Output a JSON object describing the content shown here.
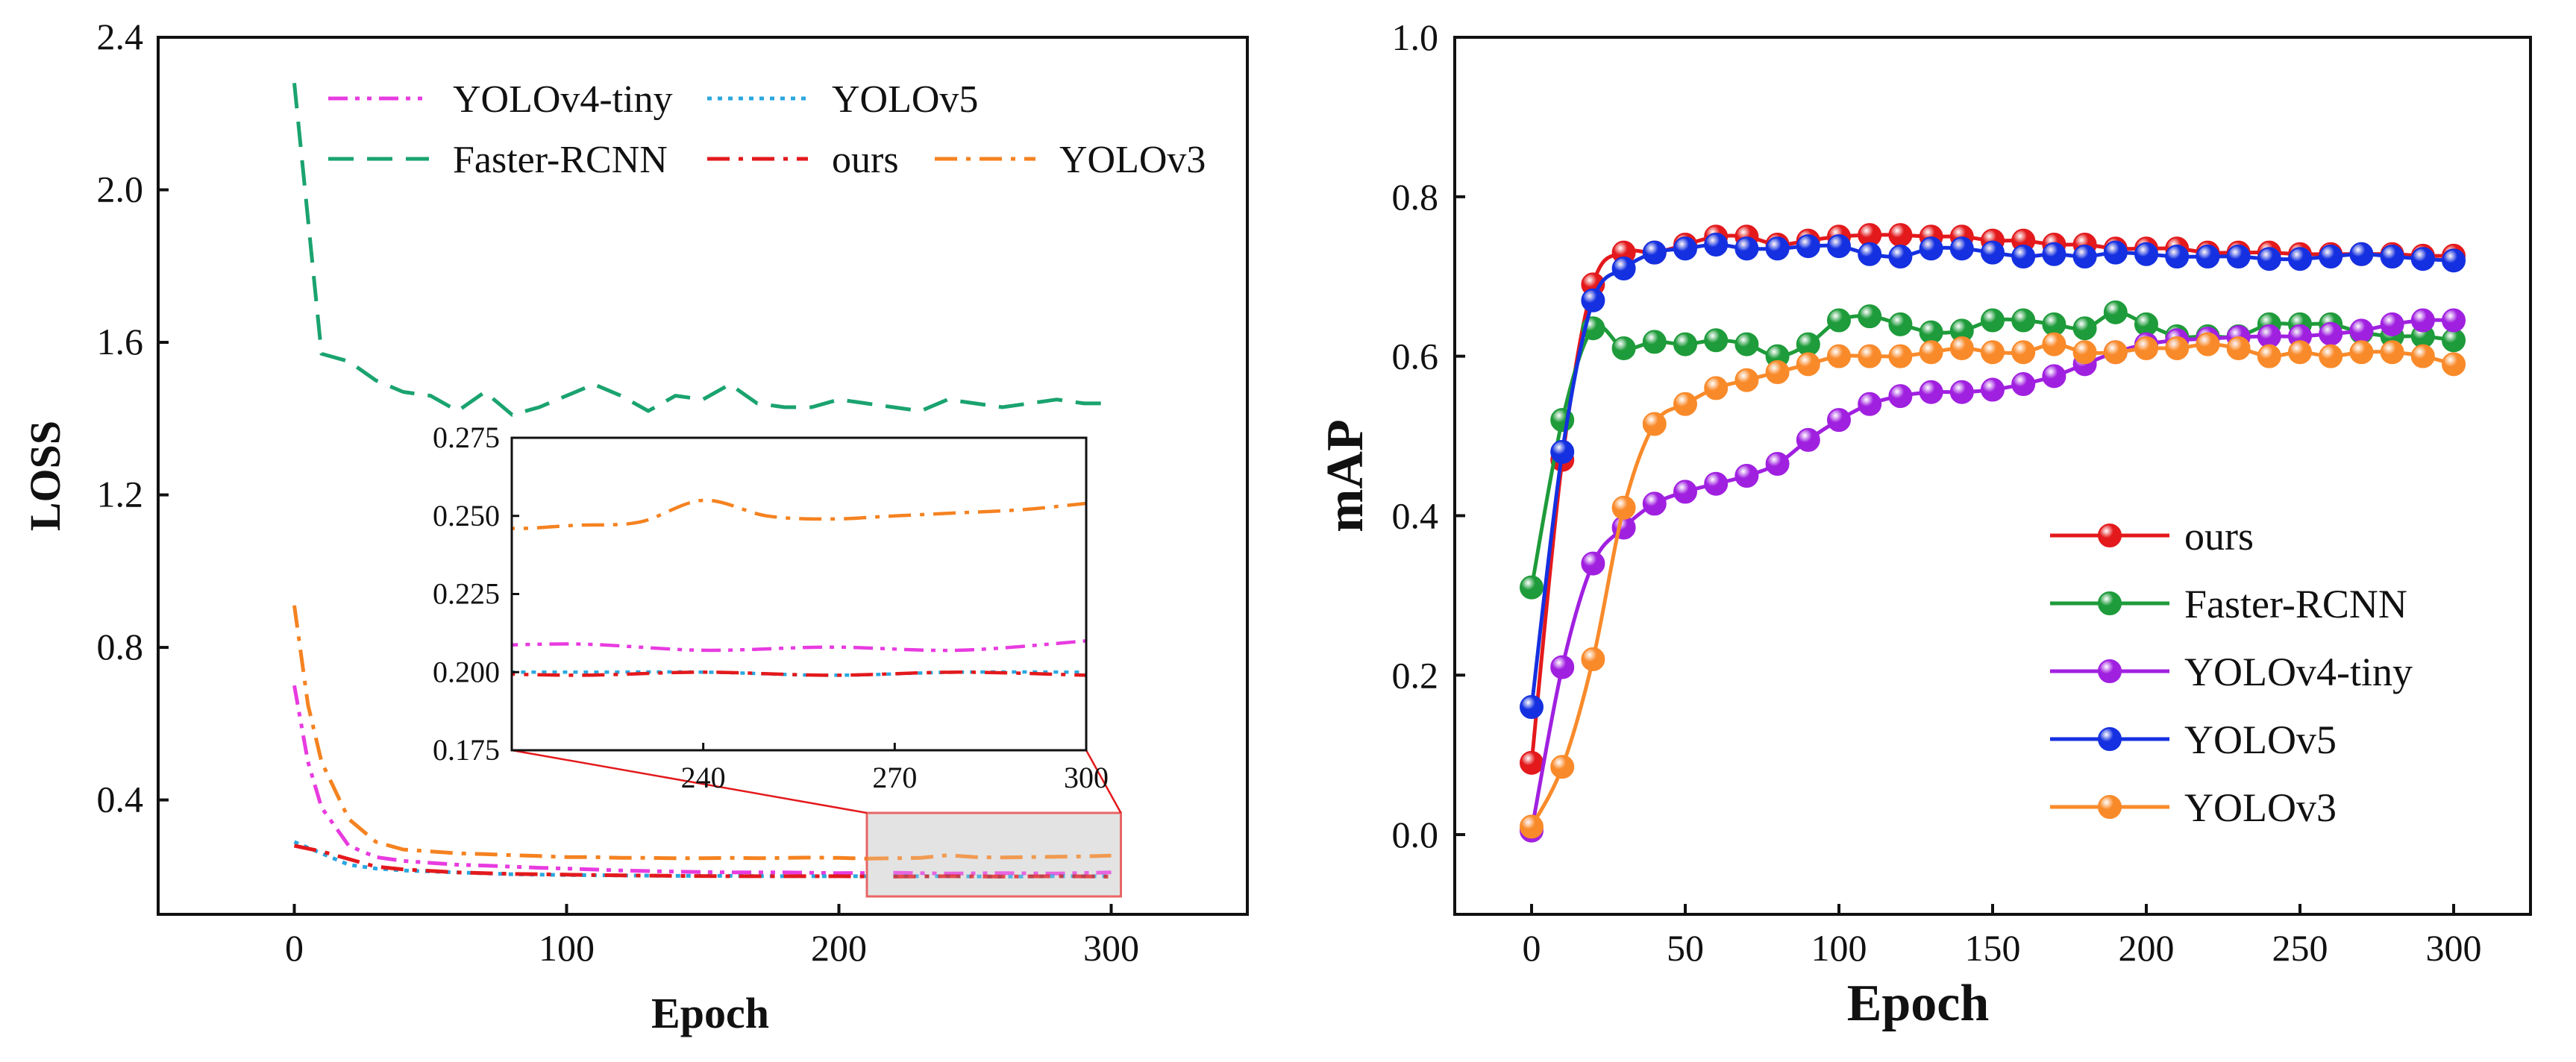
{
  "chart_data": [
    {
      "type": "line",
      "title": "",
      "xlabel": "Epoch",
      "ylabel": "LOSS",
      "xlim": [
        -50,
        350
      ],
      "ylim": [
        0.1,
        2.4
      ],
      "xticks": [
        "0",
        "100",
        "200",
        "300"
      ],
      "yticks": [
        "0.4",
        "0.8",
        "1.2",
        "1.6",
        "2.0",
        "2.4"
      ],
      "legend": {
        "position": "top"
      },
      "series": [
        {
          "name": "YOLOv4-tiny",
          "color": "#e83be0",
          "dash": "dashdotdot",
          "x": [
            0,
            5,
            10,
            20,
            30,
            40,
            50,
            60,
            70,
            80,
            90,
            100,
            120,
            140,
            160,
            180,
            200,
            220,
            240,
            260,
            280,
            300
          ],
          "values": [
            0.7,
            0.5,
            0.38,
            0.28,
            0.25,
            0.24,
            0.235,
            0.23,
            0.228,
            0.225,
            0.222,
            0.22,
            0.215,
            0.212,
            0.21,
            0.21,
            0.208,
            0.209,
            0.207,
            0.208,
            0.207,
            0.21
          ]
        },
        {
          "name": "YOLOv5",
          "color": "#2aa7e0",
          "dash": "dot",
          "x": [
            0,
            10,
            20,
            30,
            40,
            60,
            80,
            100,
            120,
            140,
            160,
            180,
            200,
            220,
            240,
            260,
            280,
            300
          ],
          "values": [
            0.29,
            0.26,
            0.23,
            0.22,
            0.215,
            0.21,
            0.205,
            0.203,
            0.202,
            0.201,
            0.201,
            0.2,
            0.2,
            0.2,
            0.2,
            0.199,
            0.2,
            0.2
          ]
        },
        {
          "name": "Faster-RCNN",
          "color": "#1aa36f",
          "dash": "dash",
          "x": [
            0,
            10,
            20,
            30,
            40,
            50,
            60,
            70,
            80,
            90,
            100,
            110,
            120,
            130,
            140,
            150,
            160,
            170,
            180,
            190,
            200,
            210,
            220,
            230,
            240,
            250,
            260,
            270,
            280,
            290,
            300
          ],
          "values": [
            2.28,
            1.57,
            1.55,
            1.5,
            1.47,
            1.46,
            1.42,
            1.47,
            1.41,
            1.43,
            1.46,
            1.49,
            1.46,
            1.42,
            1.46,
            1.45,
            1.49,
            1.44,
            1.43,
            1.43,
            1.45,
            1.44,
            1.43,
            1.42,
            1.45,
            1.44,
            1.43,
            1.44,
            1.45,
            1.44,
            1.44
          ]
        },
        {
          "name": "ours",
          "color": "#e3191c",
          "dash": "dashdot",
          "x": [
            0,
            10,
            20,
            30,
            40,
            60,
            80,
            100,
            120,
            140,
            160,
            180,
            200,
            220,
            240,
            260,
            280,
            300
          ],
          "values": [
            0.28,
            0.265,
            0.245,
            0.225,
            0.218,
            0.21,
            0.206,
            0.204,
            0.202,
            0.201,
            0.2,
            0.2,
            0.2,
            0.199,
            0.2,
            0.199,
            0.2,
            0.199
          ]
        },
        {
          "name": "YOLOv3",
          "color": "#f58220",
          "dash": "dashdot",
          "x": [
            0,
            5,
            10,
            20,
            30,
            40,
            50,
            60,
            70,
            80,
            90,
            100,
            110,
            120,
            130,
            140,
            150,
            160,
            170,
            180,
            190,
            200,
            210,
            220,
            230,
            240,
            250,
            260,
            270,
            280,
            290,
            300
          ],
          "values": [
            0.91,
            0.65,
            0.5,
            0.35,
            0.29,
            0.27,
            0.265,
            0.26,
            0.258,
            0.255,
            0.253,
            0.25,
            0.25,
            0.248,
            0.248,
            0.247,
            0.247,
            0.248,
            0.247,
            0.248,
            0.249,
            0.248,
            0.246,
            0.247,
            0.248,
            0.255,
            0.25,
            0.249,
            0.25,
            0.251,
            0.252,
            0.254
          ]
        }
      ],
      "inset": {
        "xlim": [
          210,
          300
        ],
        "ylim": [
          0.175,
          0.275
        ],
        "xticks": [
          "240",
          "270",
          "300"
        ],
        "yticks": [
          "0.175",
          "0.200",
          "0.225",
          "0.250",
          "0.275"
        ],
        "zoom_region": {
          "x": [
            210,
            300
          ],
          "y": [
            0.175,
            0.275
          ]
        }
      }
    },
    {
      "type": "line",
      "title": "",
      "xlabel": "Epoch",
      "ylabel": "mAP",
      "xlim": [
        -25,
        325
      ],
      "ylim": [
        -0.1,
        1.0
      ],
      "xticks": [
        "0",
        "50",
        "100",
        "150",
        "200",
        "250",
        "300"
      ],
      "yticks": [
        "0.0",
        "0.2",
        "0.4",
        "0.6",
        "0.8",
        "1.0"
      ],
      "legend": {
        "position": "bottom-right"
      },
      "series": [
        {
          "name": "ours",
          "color": "#e3191c",
          "x": [
            0,
            10,
            20,
            30,
            40,
            50,
            60,
            70,
            80,
            90,
            100,
            110,
            120,
            130,
            140,
            150,
            160,
            170,
            180,
            190,
            200,
            210,
            220,
            230,
            240,
            250,
            260,
            270,
            280,
            290,
            300
          ],
          "values": [
            0.09,
            0.47,
            0.69,
            0.73,
            0.73,
            0.74,
            0.75,
            0.75,
            0.74,
            0.745,
            0.75,
            0.752,
            0.752,
            0.75,
            0.75,
            0.745,
            0.745,
            0.74,
            0.74,
            0.735,
            0.735,
            0.735,
            0.73,
            0.73,
            0.73,
            0.728,
            0.728,
            0.728,
            0.728,
            0.726,
            0.726
          ]
        },
        {
          "name": "Faster-RCNN",
          "color": "#1e9b3a",
          "x": [
            0,
            10,
            20,
            30,
            40,
            50,
            60,
            70,
            80,
            90,
            100,
            110,
            120,
            130,
            140,
            150,
            160,
            170,
            180,
            190,
            200,
            210,
            220,
            230,
            240,
            250,
            260,
            270,
            280,
            290,
            300
          ],
          "values": [
            0.31,
            0.52,
            0.635,
            0.61,
            0.618,
            0.615,
            0.62,
            0.615,
            0.6,
            0.615,
            0.645,
            0.65,
            0.64,
            0.63,
            0.632,
            0.645,
            0.645,
            0.64,
            0.635,
            0.655,
            0.64,
            0.625,
            0.625,
            0.625,
            0.64,
            0.64,
            0.64,
            0.63,
            0.625,
            0.625,
            0.62
          ]
        },
        {
          "name": "YOLOv4-tiny",
          "color": "#a020e0",
          "x": [
            0,
            10,
            20,
            30,
            40,
            50,
            60,
            70,
            80,
            90,
            100,
            110,
            120,
            130,
            140,
            150,
            160,
            170,
            180,
            190,
            200,
            210,
            220,
            230,
            240,
            250,
            260,
            270,
            280,
            290,
            300
          ],
          "values": [
            0.005,
            0.21,
            0.34,
            0.385,
            0.415,
            0.43,
            0.44,
            0.45,
            0.465,
            0.495,
            0.52,
            0.54,
            0.55,
            0.555,
            0.555,
            0.558,
            0.565,
            0.575,
            0.59,
            0.605,
            0.615,
            0.62,
            0.622,
            0.624,
            0.625,
            0.625,
            0.628,
            0.632,
            0.64,
            0.645,
            0.645
          ]
        },
        {
          "name": "YOLOv5",
          "color": "#1530e0",
          "x": [
            0,
            10,
            20,
            30,
            40,
            50,
            60,
            70,
            80,
            90,
            100,
            110,
            120,
            130,
            140,
            150,
            160,
            170,
            180,
            190,
            200,
            210,
            220,
            230,
            240,
            250,
            260,
            270,
            280,
            290,
            300
          ],
          "values": [
            0.16,
            0.48,
            0.67,
            0.71,
            0.73,
            0.735,
            0.74,
            0.735,
            0.735,
            0.738,
            0.738,
            0.728,
            0.725,
            0.735,
            0.735,
            0.73,
            0.725,
            0.728,
            0.725,
            0.73,
            0.728,
            0.725,
            0.725,
            0.725,
            0.722,
            0.722,
            0.725,
            0.728,
            0.725,
            0.722,
            0.72
          ]
        },
        {
          "name": "YOLOv3",
          "color": "#f98a2a",
          "x": [
            0,
            10,
            20,
            30,
            40,
            50,
            60,
            70,
            80,
            90,
            100,
            110,
            120,
            130,
            140,
            150,
            160,
            170,
            180,
            190,
            200,
            210,
            220,
            230,
            240,
            250,
            260,
            270,
            280,
            290,
            300
          ],
          "values": [
            0.01,
            0.085,
            0.22,
            0.41,
            0.515,
            0.54,
            0.56,
            0.57,
            0.58,
            0.59,
            0.6,
            0.6,
            0.6,
            0.605,
            0.61,
            0.605,
            0.605,
            0.615,
            0.605,
            0.605,
            0.61,
            0.61,
            0.615,
            0.61,
            0.6,
            0.605,
            0.6,
            0.605,
            0.605,
            0.6,
            0.59
          ]
        }
      ]
    }
  ]
}
